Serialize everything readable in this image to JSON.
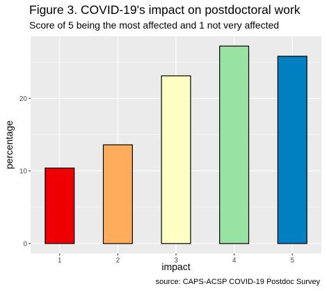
{
  "title": "Figure 3. COVID-19's impact on postdoctoral work",
  "subtitle": "Score of 5 being the most affected and 1 not very affected",
  "caption": "source: CAPS-ACSP COVID-19 Postdoc Survey",
  "colors": {
    "panel_background": "#ebebeb",
    "grid": "#ffffff",
    "bar_outline": "#000000",
    "bars": [
      "#ee0000",
      "#ffad5c",
      "#ffffc4",
      "#98e3a3",
      "#0080c0"
    ]
  },
  "chart_data": {
    "type": "bar",
    "categories": [
      "1",
      "2",
      "3",
      "4",
      "5"
    ],
    "values": [
      10.4,
      13.6,
      23.1,
      27.2,
      25.8
    ],
    "title": "Figure 3. COVID-19's impact on postdoctoral work",
    "subtitle": "Score of 5 being the most affected and 1 not very affected",
    "xlabel": "impact",
    "ylabel": "percentage",
    "ylim": [
      -1.36,
      28.56
    ],
    "yticks": [
      0,
      10,
      20
    ],
    "grid": true,
    "legend": "none"
  }
}
